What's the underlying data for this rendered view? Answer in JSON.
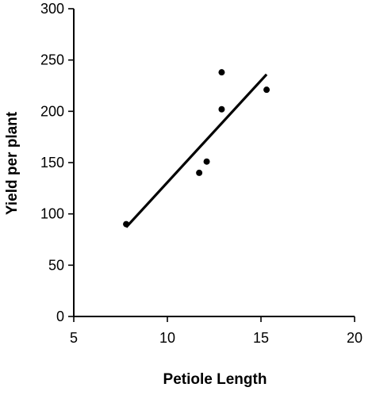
{
  "chart_data": {
    "type": "scatter",
    "title": "",
    "xlabel": "Petiole Length",
    "ylabel": "Yield per plant",
    "xlim": [
      5,
      20
    ],
    "ylim": [
      0,
      300
    ],
    "x_ticks": [
      "5",
      "10",
      "15",
      "20"
    ],
    "y_ticks": [
      "0",
      "50",
      "100",
      "150",
      "200",
      "250",
      "300"
    ],
    "grid": false,
    "legend": "none",
    "points": [
      {
        "x": 7.8,
        "y": 90
      },
      {
        "x": 11.7,
        "y": 140
      },
      {
        "x": 12.1,
        "y": 151
      },
      {
        "x": 12.9,
        "y": 238
      },
      {
        "x": 12.9,
        "y": 202
      },
      {
        "x": 15.3,
        "y": 221
      }
    ],
    "trendline": {
      "type": "linear",
      "start": {
        "x": 7.8,
        "y": 87
      },
      "end": {
        "x": 15.3,
        "y": 236
      }
    },
    "colors": {
      "axis": "#000000",
      "points": "#000000",
      "trendline": "#000000"
    }
  }
}
